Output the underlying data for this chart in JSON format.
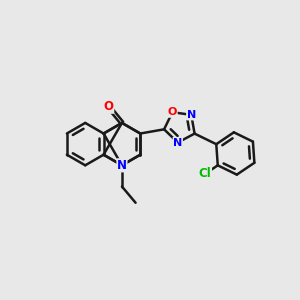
{
  "background_color": "#e8e8e8",
  "bond_color": "#1a1a1a",
  "N_color": "#0000ff",
  "O_color": "#ff0000",
  "Cl_color": "#00bb00",
  "bond_width": 1.8,
  "figsize": [
    3.0,
    3.0
  ],
  "dpi": 100,
  "xlim": [
    0,
    10
  ],
  "ylim": [
    0,
    10
  ],
  "hex_r": 0.72,
  "pent_r": 0.55
}
